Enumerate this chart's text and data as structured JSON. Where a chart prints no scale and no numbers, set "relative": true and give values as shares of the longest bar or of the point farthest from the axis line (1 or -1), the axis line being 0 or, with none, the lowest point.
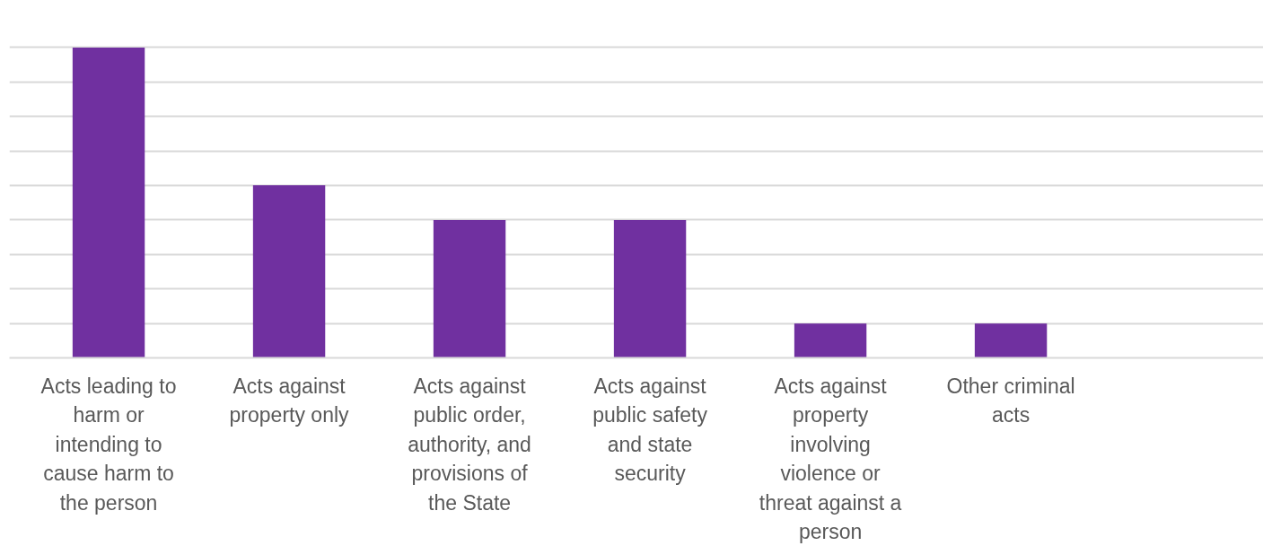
{
  "chart_data": {
    "type": "bar",
    "relative": true,
    "categories": [
      "Acts leading to harm or intending to cause harm to the person",
      "Acts against property only",
      "Acts against public order, authority, and provisions of the State",
      "Acts against public safety and state security",
      "Acts against property involving violence or threat against a person",
      "Other criminal acts"
    ],
    "values": [
      1,
      0.556,
      0.444,
      0.444,
      0.111,
      0.111
    ],
    "color": "#7030a0",
    "grid": "y"
  }
}
